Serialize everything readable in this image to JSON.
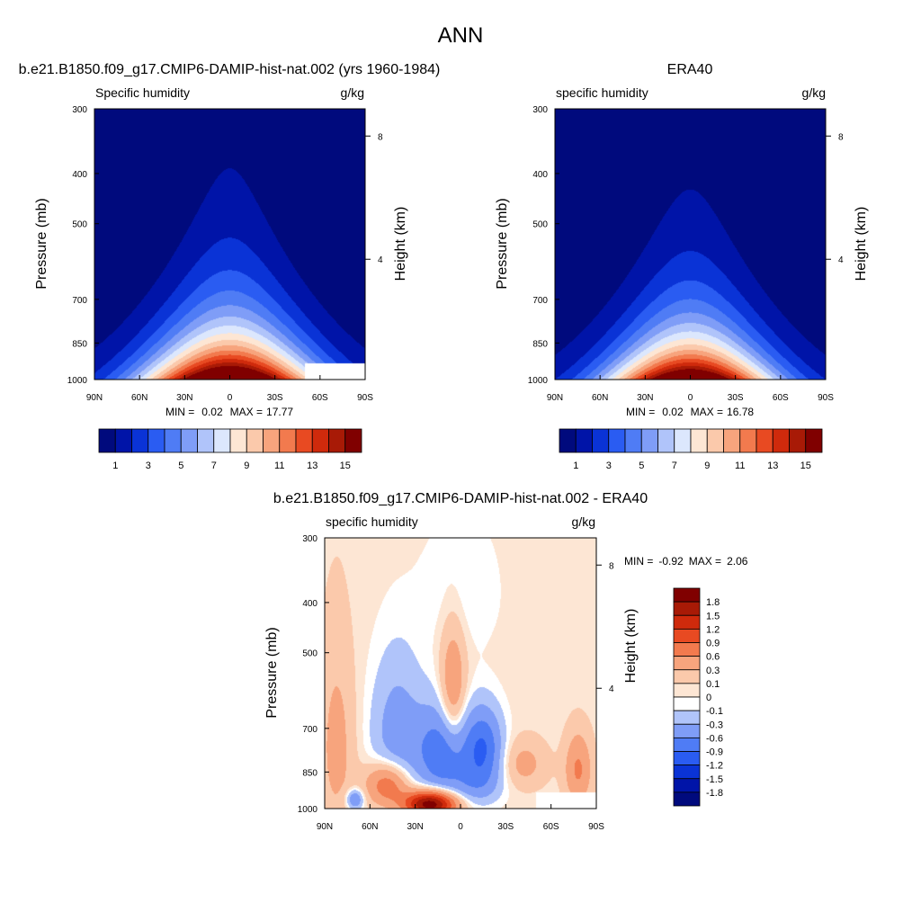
{
  "figure_title": "ANN",
  "chart_data": [
    {
      "type": "heatmap",
      "title": "b.e21.B1850.f09_g17.CMIP6-DAMIP-hist-nat.002 (yrs 1960-1984)",
      "left_label": "Specific humidity",
      "right_label": "g/kg",
      "ylabel": "Pressure (mb)",
      "ylabel_right": "Height (km)",
      "x_ticks": [
        "90N",
        "60N",
        "30N",
        "0",
        "30S",
        "60S",
        "90S"
      ],
      "y_ticks": [
        300,
        400,
        500,
        700,
        850,
        1000
      ],
      "height_ticks": [
        8,
        4
      ],
      "ylim": [
        1000,
        300
      ],
      "xlim": [
        90,
        -90
      ],
      "min_label": "MIN =",
      "min_value": "0.02",
      "max_label": "MAX =",
      "max_value": "17.77",
      "field": {
        "peak": 17.77,
        "center_lat": 0,
        "halfwidth_surface": 40,
        "scale_height_mb": 200,
        "floor": 0.02
      },
      "missing_region": {
        "lat": [
          -50,
          -90
        ],
        "pressure": [
          930,
          1000
        ]
      },
      "levels": [
        1,
        2,
        3,
        4,
        5,
        6,
        7,
        8,
        9,
        10,
        11,
        12,
        13,
        14,
        15
      ],
      "colorbar_labels": [
        "1",
        "3",
        "5",
        "7",
        "9",
        "11",
        "13",
        "15"
      ]
    },
    {
      "type": "heatmap",
      "title": "ERA40",
      "left_label": "specific humidity",
      "right_label": "g/kg",
      "ylabel": "Pressure (mb)",
      "ylabel_right": "Height (km)",
      "x_ticks": [
        "90N",
        "60N",
        "30N",
        "0",
        "30S",
        "60S",
        "90S"
      ],
      "y_ticks": [
        300,
        400,
        500,
        700,
        850,
        1000
      ],
      "height_ticks": [
        8,
        4
      ],
      "ylim": [
        1000,
        300
      ],
      "xlim": [
        90,
        -90
      ],
      "min_label": "MIN =",
      "min_value": "0.02",
      "max_label": "MAX =",
      "max_value": "16.78",
      "field": {
        "peak": 16.78,
        "center_lat": 0,
        "halfwidth_surface": 38,
        "scale_height_mb": 190,
        "floor": 0.02
      },
      "levels": [
        1,
        2,
        3,
        4,
        5,
        6,
        7,
        8,
        9,
        10,
        11,
        12,
        13,
        14,
        15
      ],
      "colorbar_labels": [
        "1",
        "3",
        "5",
        "7",
        "9",
        "11",
        "13",
        "15"
      ]
    },
    {
      "type": "heatmap",
      "title": "b.e21.B1850.f09_g17.CMIP6-DAMIP-hist-nat.002 - ERA40",
      "left_label": "specific humidity",
      "right_label": "g/kg",
      "ylabel": "Pressure (mb)",
      "ylabel_right": "Height (km)",
      "x_ticks": [
        "90N",
        "60N",
        "30N",
        "0",
        "30S",
        "60S",
        "90S"
      ],
      "y_ticks": [
        300,
        400,
        500,
        700,
        850,
        1000
      ],
      "height_ticks": [
        8,
        4
      ],
      "ylim": [
        1000,
        300
      ],
      "xlim": [
        90,
        -90
      ],
      "min_label": "MIN =",
      "min_value": "-0.92",
      "max_label": "MAX =",
      "max_value": "2.06",
      "anomalies": [
        {
          "lat": 20,
          "p": 980,
          "amp": 2.06,
          "slat": 12,
          "sp": 40
        },
        {
          "lat": 48,
          "p": 900,
          "amp": 0.9,
          "slat": 10,
          "sp": 60
        },
        {
          "lat": 5,
          "p": 600,
          "amp": 0.6,
          "slat": 6,
          "sp": 120
        },
        {
          "lat": 12,
          "p": 780,
          "amp": -0.9,
          "slat": 12,
          "sp": 110
        },
        {
          "lat": 42,
          "p": 720,
          "amp": -0.5,
          "slat": 12,
          "sp": 160
        },
        {
          "lat": -15,
          "p": 760,
          "amp": -0.92,
          "slat": 9,
          "sp": 90
        },
        {
          "lat": -10,
          "p": 900,
          "amp": -0.4,
          "slat": 12,
          "sp": 60
        },
        {
          "lat": -42,
          "p": 820,
          "amp": 0.35,
          "slat": 10,
          "sp": 60
        },
        {
          "lat": -78,
          "p": 840,
          "amp": 0.6,
          "slat": 6,
          "sp": 90
        },
        {
          "lat": 82,
          "p": 760,
          "amp": 0.35,
          "slat": 8,
          "sp": 220
        },
        {
          "lat": 0,
          "p": 380,
          "amp": -0.15,
          "slat": 18,
          "sp": 80
        },
        {
          "lat": 70,
          "p": 960,
          "amp": -0.7,
          "slat": 4,
          "sp": 30
        }
      ],
      "missing_region": {
        "lat": [
          -50,
          -90
        ],
        "pressure": [
          930,
          1000
        ]
      },
      "levels": [
        -1.8,
        -1.5,
        -1.2,
        -0.9,
        -0.6,
        -0.3,
        -0.1,
        0,
        0.1,
        0.3,
        0.6,
        0.9,
        1.2,
        1.5,
        1.8
      ],
      "colorbar_labels": [
        "1.8",
        "1.5",
        "1.2",
        "0.9",
        "0.6",
        "0.3",
        "0.1",
        "0",
        "-0.1",
        "-0.3",
        "-0.6",
        "-0.9",
        "-1.2",
        "-1.5",
        "-1.8"
      ]
    }
  ],
  "colors": {
    "palette": [
      "#000a7d",
      "#0014a8",
      "#0a33d6",
      "#2a5cf2",
      "#4f7cf5",
      "#7f9df7",
      "#b0c4fa",
      "#dce7fd",
      "#fde6d4",
      "#fbc9ab",
      "#f7a47d",
      "#f27a4e",
      "#e84a22",
      "#cf2a0c",
      "#a81a06",
      "#800000"
    ],
    "zero_color": "#ffffff",
    "missing": "#ffffff"
  }
}
